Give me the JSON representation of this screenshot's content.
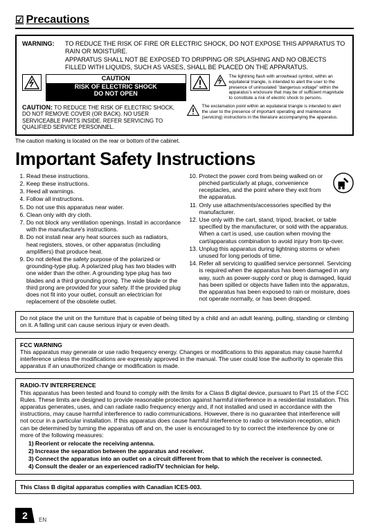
{
  "section_title": "Precautions",
  "checkbox": "☑",
  "warning": {
    "label": "WARNING:",
    "line1": "TO REDUCE THE RISK OF FIRE OR ELECTRIC SHOCK, DO NOT EXPOSE THIS APPARATUS TO RAIN OR MOISTURE.",
    "line2": "APPARATUS SHALL NOT BE EXPOSED TO DRIPPING OR SPLASHING AND NO OBJECTS FILLED WITH LIQUIDS, SUCH AS VASES, SHALL BE PLACED ON THE APPARATUS."
  },
  "caution_box": {
    "top": "CAUTION",
    "mid": "RISK OF ELECTRIC SHOCK",
    "bot": "DO NOT OPEN"
  },
  "bolt_desc": "The lightning flash with arrowhead symbol, within an equilateral triangle, is intended to alert the user to the presence of uninsulated \"dangerous voltage\" within the apparatus's enclosure that may be of sufficient magnitude to constitute a risk of electric shock to persons.",
  "caution2": {
    "label": "CAUTION:",
    "text": "TO REDUCE THE RISK OF ELECTRIC SHOCK, DO NOT REMOVE COVER (OR BACK). NO USER SERVICEABLE PARTS INSIDE. REFER SERVICING TO QUALIFIED SERVICE PERSONNEL."
  },
  "excl_desc": "The exclamation point within an equilateral triangle is intended to alert the user to the presence of important operating and maintenance (servicing) instructions in the literature accompanying the apparatus.",
  "note_under": "The caution marking is located on the rear or bottom of the cabinet.",
  "big_title": "Important Safety Instructions",
  "instructions_left": [
    "Read these instructions.",
    "Keep these instructions.",
    "Heed all warnings.",
    "Follow all instructions.",
    "Do not use this apparatus near water.",
    "Clean only with dry cloth.",
    "Do not block any ventilation openings. Install in accordance with the manufacture's instructions.",
    "Do not install near any heat sources such as radiators, heat registers, stoves, or other apparatus (including amplifiers) that produce heat.",
    "Do not defeat the safety purpose of the polarized or grounding-type plug. A polarized plug has two blades with one wider than the other. A grounding type plug has two blades and a third grounding prong. The wide blade or the third prong are provided for your safety. If the provided plug does not fit into your outlet, consult an electrician for replacement of the obsolete outlet."
  ],
  "instructions_right": [
    "Protect the power cord from being walked on or pinched particularly at plugs, convenience receptacles, and the point where they exit from the apparatus.",
    "Only use attachments/accessories specified by the manufacturer.",
    "Use only with the cart, stand, tripod, bracket, or table specified by the manufacturer, or sold with the apparatus. When a cart is used, use caution when moving the cart/apparatus combination to avoid injury from tip-over.",
    "Unplug this apparatus during lightning storms or when unused for long periods of time.",
    "Refer all servicing to qualified service personnel. Servicing is required when the apparatus has been damaged in any way, such as power-supply cord or plug is damaged, liquid has been spilled or objects have fallen into the apparatus, the apparatus has been exposed to rain or moisture, does not operate normally, or has been dropped."
  ],
  "box1": "Do not place the unit on the furniture that is capable of being tilted by a child and an adult leaning, pulling, standing or climbing on it. A falling unit can cause serious injury or even death.",
  "fcc": {
    "title": "FCC WARNING",
    "text": "This apparatus may generate or use radio frequency energy. Changes or modifications to this apparatus may cause harmful interference unless the modifications are expressly approved in the manual. The user could lose the authority to operate this apparatus if an unauthorized change or modification is made."
  },
  "radio": {
    "title": "RADIO-TV INTERFERENCE",
    "text": "This apparatus has been tested and found to comply with the limits for a Class B digital device, pursuant to Part 15 of the FCC Rules. These limits are designed to provide reasonable protection against harmful interference in a residential installation. This apparatus generates, uses, and can radiate radio frequency energy and, if not installed and used in accordance with the instructions, may cause harmful interference to radio communications. However, there is no guarantee that interference will not occur in a particular installation. If this apparatus does cause harmful interference to radio or television reception, which can be determined by turning the apparatus off and on, the user is encouraged to try to correct the interference by one or more of the following measures:",
    "steps": [
      "1) Reorient or relocate the receiving antenna.",
      "2) Increase the separation between the apparatus and receiver.",
      "3) Connect the apparatus into an outlet on a circuit different from that to which the receiver is connected.",
      "4) Consult the dealer or an experienced radio/TV technician for help."
    ]
  },
  "ices": "This Class B digital apparatus complies with Canadian ICES-003.",
  "page_number": "2",
  "lang": "EN",
  "colors": {
    "text": "#000000",
    "bg": "#ffffff"
  }
}
